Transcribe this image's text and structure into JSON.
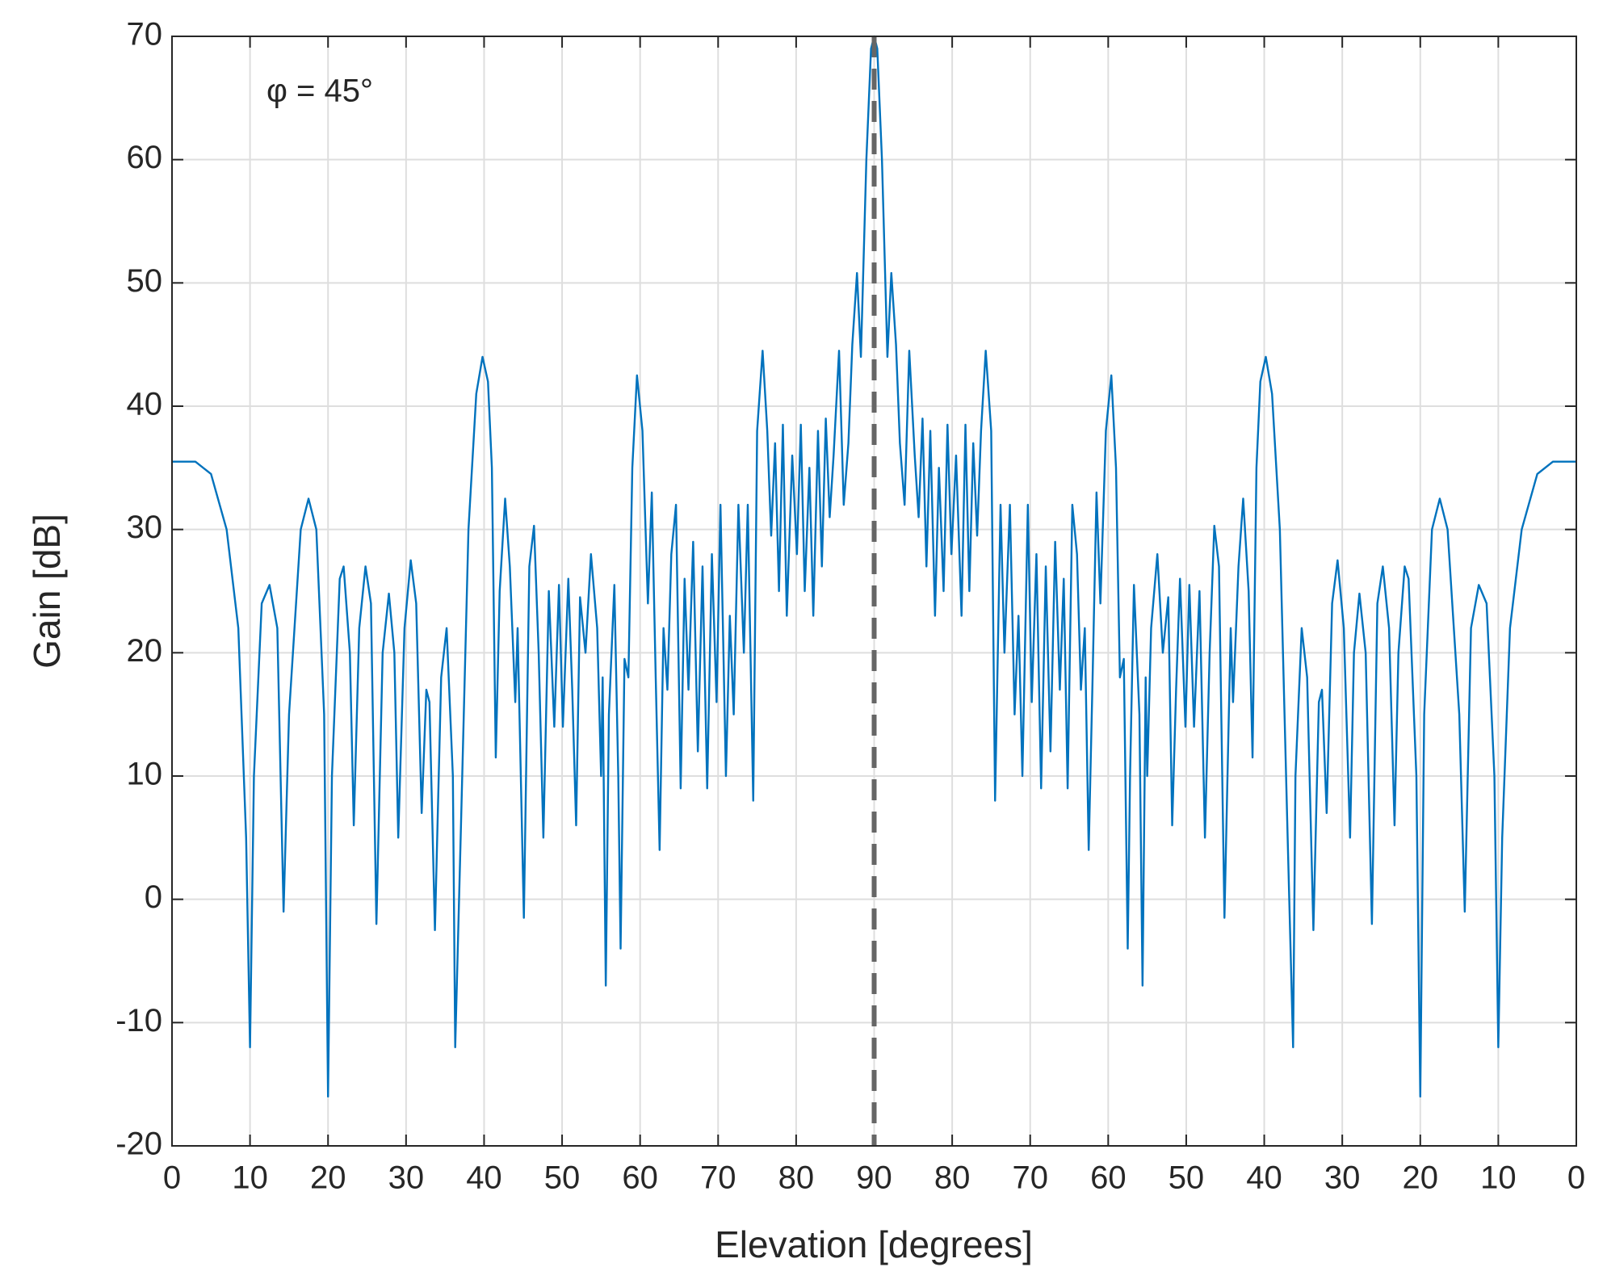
{
  "chart_data": {
    "type": "line",
    "xlabel": "Elevation [degrees]",
    "ylabel": "Gain [dB]",
    "annotation": "φ = 45°",
    "color": "#0072bd",
    "grid": true,
    "vline": 90,
    "xlim": [
      0,
      180
    ],
    "ylim": [
      -20,
      70
    ],
    "xticks": [
      0,
      10,
      20,
      30,
      40,
      50,
      60,
      70,
      80,
      90,
      {
        "value": 100,
        "label": "80"
      },
      {
        "value": 110,
        "label": "70"
      },
      {
        "value": 120,
        "label": "60"
      },
      {
        "value": 130,
        "label": "50"
      },
      {
        "value": 140,
        "label": "40"
      },
      {
        "value": 150,
        "label": "30"
      },
      {
        "value": 160,
        "label": "20"
      },
      {
        "value": 170,
        "label": "10"
      },
      {
        "value": 180,
        "label": "0"
      }
    ],
    "yticks": [
      -20,
      -10,
      0,
      10,
      20,
      30,
      40,
      50,
      60,
      70
    ],
    "x": [
      0,
      3,
      5,
      7,
      8.5,
      9.5,
      10,
      10.5,
      11.5,
      12.5,
      13.5,
      14.3,
      15,
      16.5,
      17.5,
      18.5,
      19.5,
      20,
      20.5,
      21.5,
      22,
      22.8,
      23.3,
      24,
      24.8,
      25.5,
      26.2,
      27,
      27.8,
      28.5,
      29,
      29.8,
      30.6,
      31.3,
      32,
      32.6,
      33,
      33.7,
      34.5,
      35.2,
      36,
      36.3,
      37,
      38,
      39,
      39.8,
      40.5,
      41,
      41.5,
      42,
      42.7,
      43.3,
      44,
      44.3,
      45.1,
      45.8,
      46.4,
      47,
      47.6,
      48.3,
      49,
      49.6,
      50.1,
      50.8,
      51.3,
      51.8,
      52.3,
      53,
      53.7,
      54.5,
      55,
      55.2,
      55.6,
      56,
      56.7,
      57.2,
      57.5,
      58,
      58.5,
      59,
      59.6,
      60.3,
      61,
      61.5,
      62,
      62.5,
      63,
      63.5,
      64,
      64.6,
      65.2,
      65.7,
      66.2,
      66.8,
      67.4,
      68,
      68.6,
      69.2,
      69.8,
      70.3,
      71,
      71.5,
      72,
      72.6,
      73.3,
      73.8,
      74.5,
      75,
      75.7,
      76.3,
      76.8,
      77.3,
      77.8,
      78.3,
      78.8,
      79.5,
      80.1,
      80.6,
      81.1,
      81.7,
      82.2,
      82.8,
      83.3,
      83.8,
      84.3,
      84.8,
      85.5,
      86.1,
      86.7,
      87.2,
      87.8,
      88.3,
      89,
      89.6,
      90,
      90.4,
      91,
      91.7,
      92.2,
      92.8,
      93.3,
      93.9,
      94.5,
      95.2,
      95.7,
      96.2,
      96.7,
      97.2,
      97.8,
      98.3,
      98.9,
      99.4,
      99.9,
      100.5,
      101.2,
      101.7,
      102.2,
      102.7,
      103.2,
      103.7,
      104.3,
      105,
      105.5,
      106.2,
      106.7,
      107.4,
      108,
      108.5,
      109,
      109.7,
      110.2,
      110.8,
      111.4,
      112,
      112.6,
      113.2,
      113.8,
      114.3,
      114.8,
      115.4,
      116,
      116.5,
      117,
      117.5,
      118,
      118.5,
      119,
      119.7,
      120.4,
      121,
      121.5,
      122,
      122.5,
      122.8,
      123.3,
      124,
      124.4,
      124.8,
      125,
      125.5,
      126.3,
      127,
      127.7,
      128.2,
      128.7,
      129.2,
      129.9,
      130.4,
      131,
      131.7,
      132.4,
      133,
      133.6,
      134.2,
      134.9,
      135.7,
      136,
      136.7,
      137.3,
      138,
      138.5,
      139,
      139.5,
      140.2,
      141,
      142,
      143,
      143.7,
      144,
      144.8,
      145.5,
      146.3,
      147,
      147.4,
      148,
      148.7,
      149.4,
      150.2,
      151,
      151.5,
      152.2,
      153,
      153.8,
      154.5,
      155.2,
      156,
      156.7,
      157.2,
      158,
      158.5,
      159.5,
      160,
      160.5,
      161.5,
      162.5,
      163.5,
      165,
      165.7,
      166.5,
      167.5,
      168.5,
      169.5,
      170,
      170.5,
      171.5,
      173,
      175,
      177,
      180
    ],
    "values": [
      35.5,
      35.5,
      34.5,
      30,
      22,
      5,
      -12,
      10,
      24,
      25.5,
      22,
      -1,
      15,
      30,
      32.5,
      30,
      15,
      -16,
      10,
      26,
      27,
      20,
      6,
      22,
      27,
      24,
      -2,
      20,
      24.8,
      20,
      5,
      22,
      27.5,
      24,
      7,
      17,
      16,
      -2.5,
      18,
      22,
      10,
      -12,
      5,
      30,
      41,
      44,
      42,
      35,
      11.5,
      25,
      32.5,
      27,
      16,
      22,
      -1.5,
      27,
      30.3,
      20,
      5,
      25,
      14,
      25.5,
      14,
      26,
      17,
      6,
      24.5,
      20,
      28,
      22,
      10,
      18,
      -7,
      15,
      25.5,
      10,
      -4,
      19.5,
      18,
      35,
      42.5,
      38,
      24,
      33,
      18,
      4,
      22,
      17,
      28,
      32,
      9,
      26,
      17,
      29,
      12,
      27,
      9,
      28,
      16,
      32,
      10,
      23,
      15,
      32,
      20,
      32,
      8,
      38,
      44.5,
      38,
      29.5,
      37,
      25,
      38.5,
      23,
      36,
      28,
      38.5,
      25,
      35,
      23,
      38,
      27,
      39,
      31,
      36,
      44.5,
      32,
      37,
      45,
      50.8,
      44,
      60,
      69,
      70,
      69,
      60,
      44,
      50.8,
      45,
      37,
      32,
      44.5,
      36,
      31,
      39,
      27,
      38,
      23,
      35,
      25,
      38.5,
      28,
      36,
      23,
      38.5,
      25,
      37,
      29.5,
      38,
      44.5,
      38,
      8,
      32,
      20,
      32,
      15,
      23,
      10,
      32,
      16,
      28,
      9,
      27,
      12,
      29,
      17,
      26,
      9,
      32,
      28,
      17,
      22,
      4,
      18,
      33,
      24,
      38,
      42.5,
      35,
      18,
      19.5,
      -4,
      10,
      25.5,
      15,
      -7,
      18,
      10,
      22,
      28,
      20,
      24.5,
      6,
      17,
      26,
      14,
      25.5,
      14,
      25,
      5,
      20,
      30.3,
      27,
      -1.5,
      22,
      16,
      27,
      32.5,
      25,
      11.5,
      35,
      42,
      44,
      41,
      30,
      5,
      -12,
      10,
      22,
      18,
      -2.5,
      16,
      17,
      7,
      24,
      27.5,
      22,
      5,
      20,
      24.8,
      20,
      -2,
      24,
      27,
      22,
      6,
      20,
      27,
      26,
      10,
      -16,
      15,
      30,
      32.5,
      30,
      15,
      -1,
      22,
      25.5,
      24,
      10,
      -12,
      5,
      22,
      30,
      34.5,
      35.5,
      35.5
    ]
  }
}
